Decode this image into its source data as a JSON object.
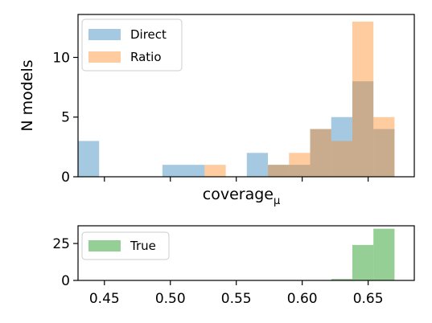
{
  "chart_data": [
    {
      "type": "histogram",
      "panel": "top",
      "title": "",
      "xlabel": "coverage",
      "xlabel_subscript": "μ",
      "ylabel": "N models",
      "xlim": [
        0.43,
        0.685
      ],
      "ylim": [
        0,
        13.6
      ],
      "yticks": [
        0,
        5,
        10
      ],
      "bin_edges": [
        0.43,
        0.446,
        0.462,
        0.478,
        0.494,
        0.51,
        0.526,
        0.542,
        0.558,
        0.574,
        0.59,
        0.606,
        0.622,
        0.638,
        0.654,
        0.67,
        0.686
      ],
      "grid": false,
      "legend_position": "top-left",
      "series": [
        {
          "name": "Direct",
          "color": "#1f77b4",
          "alpha": 0.4,
          "values": [
            3,
            0,
            0,
            0,
            1,
            1,
            0,
            0,
            2,
            1,
            1,
            4,
            5,
            8,
            4,
            0
          ]
        },
        {
          "name": "Ratio",
          "color": "#ff7f0e",
          "alpha": 0.4,
          "values": [
            0,
            0,
            0,
            0,
            0,
            0,
            1,
            0,
            0,
            1,
            2,
            4,
            3,
            13,
            5,
            0
          ]
        }
      ]
    },
    {
      "type": "histogram",
      "panel": "bottom",
      "title": "",
      "xlabel": "",
      "ylabel": "",
      "xlim": [
        0.43,
        0.685
      ],
      "ylim": [
        0,
        37
      ],
      "xticks": [
        0.45,
        0.5,
        0.55,
        0.6,
        0.65
      ],
      "xtick_labels": [
        "0.45",
        "0.50",
        "0.55",
        "0.60",
        "0.65"
      ],
      "yticks": [
        0,
        25
      ],
      "bin_edges": [
        0.622,
        0.638,
        0.654,
        0.67,
        0.686
      ],
      "grid": false,
      "legend_position": "top-left",
      "series": [
        {
          "name": "True",
          "color": "#2ca02c",
          "alpha": 0.5,
          "values": [
            1,
            24,
            35,
            0
          ]
        }
      ]
    }
  ]
}
